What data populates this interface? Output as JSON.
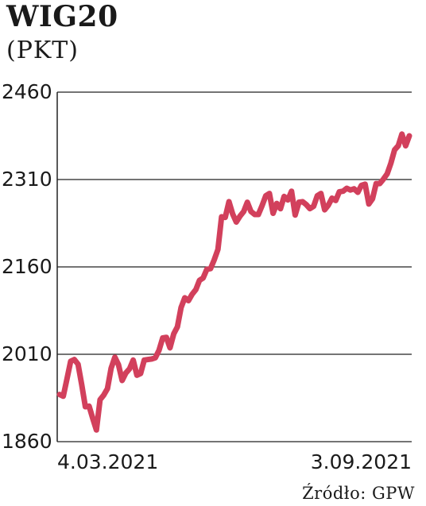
{
  "title": "WIG20",
  "unit": "(PKT)",
  "source": "Źródło: GPW",
  "colors": {
    "line": "#d2405c",
    "grid": "#222222",
    "text": "#1a1a1a"
  },
  "chart_data": {
    "type": "line",
    "title": "WIG20",
    "ylabel": "(PKT)",
    "xlabel": "",
    "ylim": [
      1860,
      2460
    ],
    "yticks": [
      2460,
      2310,
      2160,
      2010,
      1860
    ],
    "x_tick_labels": [
      "4.03.2021",
      "3.09.2021"
    ],
    "x_range": [
      "4.03.2021",
      "3.09.2021"
    ],
    "grid": true,
    "series": [
      {
        "values": [
          1941,
          1938,
          1968,
          1998,
          2001,
          1993,
          1958,
          1920,
          1921,
          1900,
          1880,
          1932,
          1940,
          1951,
          1986,
          2005,
          1992,
          1965,
          1978,
          1985,
          2000,
          1974,
          1977,
          2000,
          2001,
          2002,
          2004,
          2017,
          2038,
          2039,
          2021,
          2045,
          2057,
          2090,
          2107,
          2102,
          2113,
          2121,
          2137,
          2141,
          2156,
          2157,
          2172,
          2190,
          2246,
          2245,
          2272,
          2251,
          2237,
          2247,
          2255,
          2271,
          2255,
          2250,
          2250,
          2265,
          2282,
          2286,
          2252,
          2269,
          2260,
          2281,
          2275,
          2290,
          2249,
          2271,
          2272,
          2267,
          2260,
          2264,
          2282,
          2286,
          2258,
          2266,
          2278,
          2274,
          2289,
          2290,
          2295,
          2292,
          2294,
          2288,
          2300,
          2302,
          2268,
          2277,
          2303,
          2303,
          2311,
          2320,
          2338,
          2361,
          2368,
          2388,
          2368,
          2385
        ]
      }
    ]
  }
}
